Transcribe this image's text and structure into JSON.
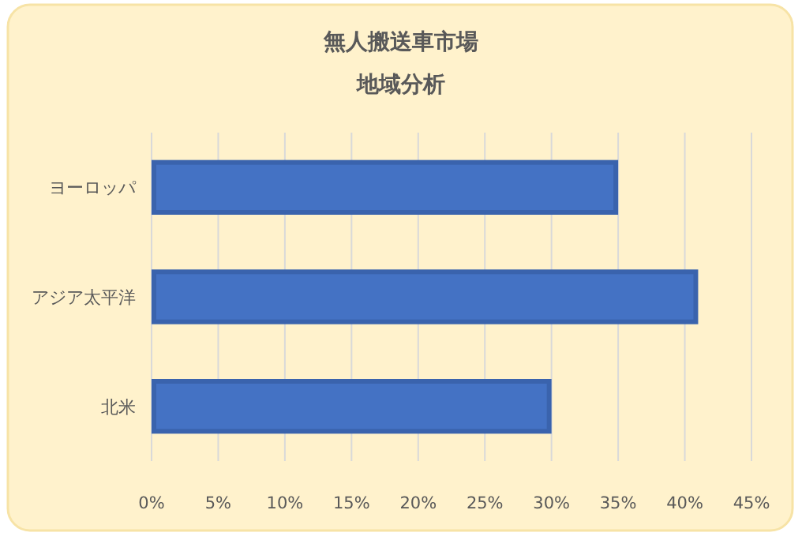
{
  "chart_data": {
    "type": "bar",
    "orientation": "horizontal",
    "title": "無人搬送車市場",
    "subtitle": "地域分析",
    "categories": [
      "ヨーロッパ",
      "アジア太平洋",
      "北米"
    ],
    "series": [
      {
        "color": "#4472c4",
        "values": [
          35,
          41,
          30
        ]
      }
    ],
    "xlim": [
      0,
      45
    ],
    "xticks": [
      {
        "value": 0,
        "label": "0%"
      },
      {
        "value": 5,
        "label": "5%"
      },
      {
        "value": 10,
        "label": "10%"
      },
      {
        "value": 15,
        "label": "15%"
      },
      {
        "value": 20,
        "label": "20%"
      },
      {
        "value": 25,
        "label": "25%"
      },
      {
        "value": 30,
        "label": "30%"
      },
      {
        "value": 35,
        "label": "35%"
      },
      {
        "value": 40,
        "label": "40%"
      },
      {
        "value": 45,
        "label": "45%"
      }
    ],
    "grid": "x"
  }
}
